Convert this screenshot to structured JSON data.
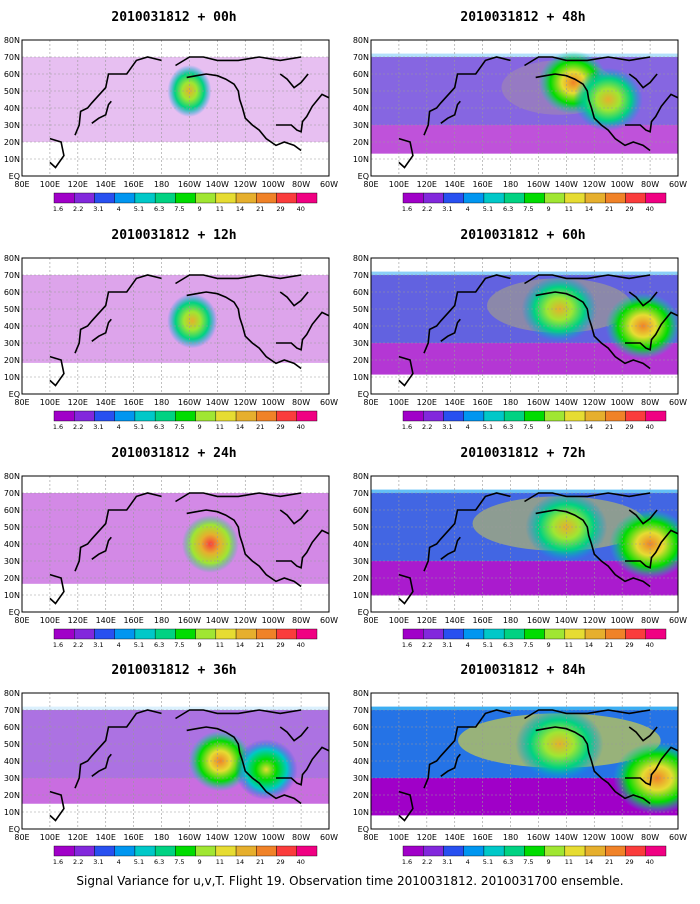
{
  "caption": "Signal Variance for u,v,T. Flight 19. Observation time 2010031812. 2010031700 ensemble.",
  "colorbar": {
    "levels": [
      "1.6",
      "2.2",
      "3.1",
      "4",
      "5.1",
      "6.3",
      "7.5",
      "9",
      "11",
      "14",
      "21",
      "29",
      "40"
    ],
    "colors": [
      "#a000c8",
      "#8228dc",
      "#2850f0",
      "#0096f0",
      "#00c8c8",
      "#00d282",
      "#00dc00",
      "#a0e632",
      "#e6dc32",
      "#e6af2d",
      "#f08228",
      "#fa3c3c",
      "#f00082"
    ]
  },
  "axes": {
    "x_ticks": [
      "80E",
      "100E",
      "120E",
      "140E",
      "160E",
      "180",
      "160W",
      "140W",
      "120W",
      "100W",
      "80W",
      "60W"
    ],
    "y_ticks": [
      "EQ",
      "10N",
      "20N",
      "30N",
      "40N",
      "50N",
      "60N",
      "70N",
      "80N"
    ]
  },
  "chart_data": [
    {
      "type": "heatmap",
      "title": "2010031812 + 00h",
      "lead": "00h",
      "max_level": "14",
      "hotspots": [
        {
          "lon": 200,
          "lat": 50,
          "level": "14"
        }
      ]
    },
    {
      "type": "heatmap",
      "title": "2010031812 + 12h",
      "lead": "12h",
      "max_level": "14",
      "hotspots": [
        {
          "lon": 202,
          "lat": 43,
          "level": "14"
        }
      ]
    },
    {
      "type": "heatmap",
      "title": "2010031812 + 24h",
      "lead": "24h",
      "max_level": "29",
      "hotspots": [
        {
          "lon": 215,
          "lat": 40,
          "level": "29"
        }
      ]
    },
    {
      "type": "heatmap",
      "title": "2010031812 + 36h",
      "lead": "36h",
      "max_level": "21",
      "hotspots": [
        {
          "lon": 222,
          "lat": 40,
          "level": "21"
        },
        {
          "lon": 255,
          "lat": 35,
          "level": "11"
        }
      ]
    },
    {
      "type": "heatmap",
      "title": "2010031812 + 48h",
      "lead": "48h",
      "max_level": "21",
      "hotspots": [
        {
          "lon": 225,
          "lat": 55,
          "level": "21"
        },
        {
          "lon": 250,
          "lat": 45,
          "level": "14"
        }
      ]
    },
    {
      "type": "heatmap",
      "title": "2010031812 + 60h",
      "lead": "60h",
      "max_level": "21",
      "hotspots": [
        {
          "lon": 215,
          "lat": 50,
          "level": "14"
        },
        {
          "lon": 275,
          "lat": 40,
          "level": "21"
        }
      ]
    },
    {
      "type": "heatmap",
      "title": "2010031812 + 72h",
      "lead": "72h",
      "max_level": "21",
      "hotspots": [
        {
          "lon": 220,
          "lat": 50,
          "level": "14"
        },
        {
          "lon": 280,
          "lat": 40,
          "level": "21"
        }
      ]
    },
    {
      "type": "heatmap",
      "title": "2010031812 + 84h",
      "lead": "84h",
      "max_level": "21",
      "hotspots": [
        {
          "lon": 215,
          "lat": 50,
          "level": "14"
        },
        {
          "lon": 285,
          "lat": 30,
          "level": "21"
        }
      ]
    }
  ]
}
